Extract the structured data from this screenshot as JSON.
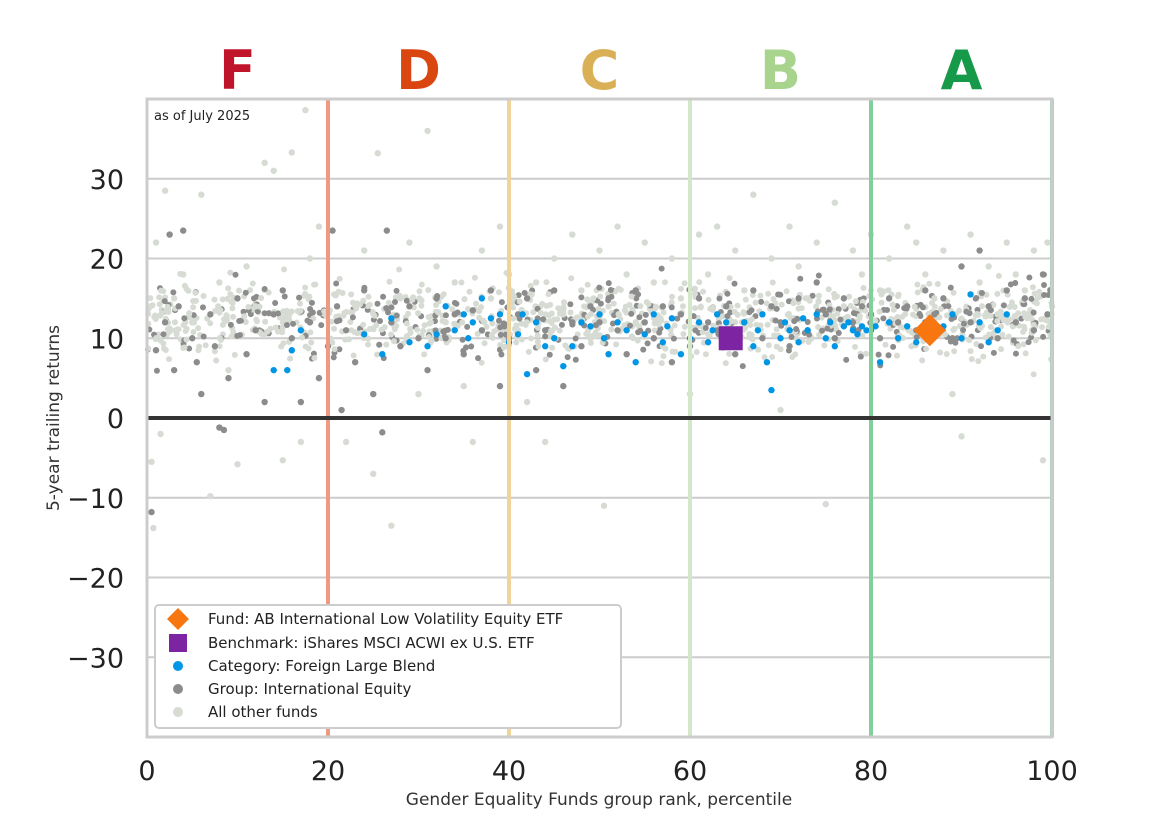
{
  "chart_data": {
    "type": "scatter",
    "title": "",
    "note": "as of July 2025",
    "xlabel": "Gender Equality Funds group rank, percentile",
    "ylabel": "5-year trailing returns",
    "xlim": [
      0,
      100
    ],
    "ylim": [
      -40,
      40
    ],
    "x_ticks": [
      0,
      20,
      40,
      60,
      80,
      100
    ],
    "x_tick_labels": [
      "0",
      "20",
      "40",
      "60",
      "80",
      "100"
    ],
    "y_ticks": [
      30,
      20,
      10,
      0,
      -10,
      -20,
      -30
    ],
    "y_tick_labels": [
      "30",
      "20",
      "10",
      "0",
      "−10",
      "−20",
      "−30"
    ],
    "grid": "horizontal",
    "zero_line": 0,
    "grade_bands": [
      {
        "label": "F",
        "center": 10,
        "boundary": 20,
        "color": "#c0142b",
        "line_color": "#ee9a82"
      },
      {
        "label": "D",
        "center": 30,
        "boundary": 40,
        "color": "#d9460f",
        "line_color": "#f0d49c"
      },
      {
        "label": "C",
        "center": 50,
        "boundary": 60,
        "color": "#d9b055",
        "line_color": "#d3e8c8"
      },
      {
        "label": "B",
        "center": 70,
        "boundary": 80,
        "color": "#a8d48e",
        "line_color": "#82cf9c"
      },
      {
        "label": "A",
        "center": 90,
        "boundary": 100,
        "color": "#17994a",
        "line_color": "#9fd5b3"
      }
    ],
    "legend_position": "lower-left",
    "series": [
      {
        "name": "Fund: AB International Low Volatility Equity ETF",
        "marker": "diamond",
        "color": "#f7760f",
        "points": [
          [
            86.5,
            11.0
          ]
        ]
      },
      {
        "name": "Benchmark: iShares MSCI ACWI ex U.S. ETF",
        "marker": "square",
        "color": "#7d24a3",
        "points": [
          [
            64.5,
            10.0
          ]
        ]
      },
      {
        "name": "Category: Foreign Large Blend",
        "marker": "circle",
        "color": "#0096e6",
        "points": [
          [
            14,
            6
          ],
          [
            15.5,
            6
          ],
          [
            16,
            8.5
          ],
          [
            17,
            11
          ],
          [
            24,
            10.5
          ],
          [
            26,
            8
          ],
          [
            27,
            12.5
          ],
          [
            29,
            9.5
          ],
          [
            31,
            9
          ],
          [
            32,
            10.5
          ],
          [
            33,
            14
          ],
          [
            34,
            11
          ],
          [
            35,
            13
          ],
          [
            35.5,
            10
          ],
          [
            36,
            12
          ],
          [
            37,
            15
          ],
          [
            38,
            12.5
          ],
          [
            39,
            13
          ],
          [
            40,
            9.5
          ],
          [
            41,
            10.5
          ],
          [
            41.5,
            13
          ],
          [
            42,
            5.5
          ],
          [
            43,
            12
          ],
          [
            44,
            9
          ],
          [
            45,
            10
          ],
          [
            46,
            6.5
          ],
          [
            47,
            9
          ],
          [
            48,
            12
          ],
          [
            49,
            11.5
          ],
          [
            50,
            13
          ],
          [
            50.5,
            10
          ],
          [
            51,
            8
          ],
          [
            52,
            12
          ],
          [
            53,
            11
          ],
          [
            54,
            7
          ],
          [
            55,
            10.5
          ],
          [
            56,
            13
          ],
          [
            57,
            9.5
          ],
          [
            57.5,
            11.5
          ],
          [
            58,
            12.5
          ],
          [
            59,
            8
          ],
          [
            60,
            10
          ],
          [
            61,
            12
          ],
          [
            62,
            9.5
          ],
          [
            62.5,
            11
          ],
          [
            63,
            13
          ],
          [
            64,
            12
          ],
          [
            65,
            10.5
          ],
          [
            66,
            12
          ],
          [
            67,
            9
          ],
          [
            67.5,
            11
          ],
          [
            68,
            13
          ],
          [
            68.5,
            7
          ],
          [
            69,
            3.5
          ],
          [
            70,
            10
          ],
          [
            70.5,
            12
          ],
          [
            71,
            11
          ],
          [
            72,
            9.5
          ],
          [
            72.5,
            12.5
          ],
          [
            73,
            11
          ],
          [
            74,
            13
          ],
          [
            75,
            10
          ],
          [
            75.5,
            12
          ],
          [
            76,
            9
          ],
          [
            77,
            11.5
          ],
          [
            77.5,
            12
          ],
          [
            78,
            11
          ],
          [
            78.5,
            10.5
          ],
          [
            79,
            11.5
          ],
          [
            79.5,
            11
          ],
          [
            80,
            11
          ],
          [
            80.5,
            11.5
          ],
          [
            81,
            7
          ],
          [
            82,
            12
          ],
          [
            83,
            10
          ],
          [
            84,
            11.5
          ],
          [
            85,
            9.5
          ],
          [
            86,
            12
          ],
          [
            87,
            10.5
          ],
          [
            88,
            11.5
          ],
          [
            89,
            13
          ],
          [
            90,
            10
          ],
          [
            91,
            15.5
          ],
          [
            92,
            12
          ],
          [
            93,
            9.5
          ],
          [
            94,
            11
          ],
          [
            95,
            13
          ]
        ]
      },
      {
        "name": "Group: International Equity",
        "marker": "circle",
        "color": "#8c8c8c",
        "points": [
          [
            0.5,
            -11.8
          ],
          [
            1,
            8.5
          ],
          [
            2,
            12
          ],
          [
            2.5,
            23
          ],
          [
            3,
            6
          ],
          [
            3.5,
            14
          ],
          [
            4,
            23.5
          ],
          [
            5,
            10
          ],
          [
            5.5,
            7
          ],
          [
            6,
            3
          ],
          [
            7,
            13
          ],
          [
            7.5,
            9
          ],
          [
            8,
            -1.2
          ],
          [
            8.5,
            -1.5
          ],
          [
            9,
            5
          ],
          [
            10,
            15
          ],
          [
            11,
            8
          ],
          [
            12,
            11
          ],
          [
            13,
            2
          ],
          [
            14,
            13
          ],
          [
            15,
            16
          ],
          [
            16,
            10
          ],
          [
            17,
            2
          ],
          [
            18,
            12
          ],
          [
            19,
            5
          ],
          [
            20,
            9
          ],
          [
            20.5,
            23.5
          ],
          [
            21,
            14
          ],
          [
            21.5,
            1
          ],
          [
            22,
            11
          ],
          [
            23,
            7
          ],
          [
            24,
            16
          ],
          [
            25,
            3
          ],
          [
            26,
            -1.8
          ],
          [
            26.5,
            23.5
          ],
          [
            27,
            12
          ],
          [
            28,
            9
          ],
          [
            29,
            14
          ],
          [
            30,
            10
          ],
          [
            31,
            6
          ],
          [
            32,
            15
          ],
          [
            33,
            10
          ],
          [
            34,
            13
          ],
          [
            35,
            8
          ],
          [
            36,
            13.5
          ],
          [
            37,
            11
          ],
          [
            38,
            16
          ],
          [
            39,
            4
          ],
          [
            40,
            10
          ],
          [
            41,
            13
          ],
          [
            42,
            15
          ],
          [
            43,
            6
          ],
          [
            44,
            11
          ],
          [
            45,
            16
          ],
          [
            46,
            4
          ],
          [
            47,
            12
          ],
          [
            48,
            9
          ],
          [
            49,
            14
          ],
          [
            50,
            12
          ],
          [
            51,
            15
          ],
          [
            52,
            11
          ],
          [
            53,
            8
          ],
          [
            54,
            16
          ],
          [
            55,
            12
          ],
          [
            56,
            10
          ],
          [
            57,
            14
          ],
          [
            58,
            7
          ],
          [
            59,
            13
          ],
          [
            60,
            9
          ],
          [
            61,
            15
          ],
          [
            62,
            12
          ],
          [
            63,
            11
          ],
          [
            64,
            14
          ],
          [
            65,
            8
          ],
          [
            66,
            12
          ],
          [
            67,
            16
          ],
          [
            68,
            10
          ],
          [
            69,
            14
          ],
          [
            70,
            12
          ],
          [
            71,
            9
          ],
          [
            72,
            15
          ],
          [
            73,
            11
          ],
          [
            74,
            17
          ],
          [
            75,
            13
          ],
          [
            76,
            10
          ],
          [
            77,
            15
          ],
          [
            78,
            12
          ],
          [
            79,
            14
          ],
          [
            80,
            13
          ],
          [
            81,
            10
          ],
          [
            82,
            15
          ],
          [
            83,
            12
          ],
          [
            84,
            14
          ],
          [
            85,
            11
          ],
          [
            86,
            16
          ],
          [
            87,
            13
          ],
          [
            88,
            15
          ],
          [
            89,
            10
          ],
          [
            90,
            19
          ],
          [
            91,
            12
          ],
          [
            92,
            21
          ],
          [
            93,
            14
          ],
          [
            94,
            10
          ],
          [
            95,
            16
          ],
          [
            96,
            12
          ],
          [
            97,
            15
          ],
          [
            98,
            11
          ],
          [
            99,
            18
          ],
          [
            99.5,
            13
          ]
        ]
      },
      {
        "name": "All other funds",
        "marker": "circle",
        "color": "#d6dbd3",
        "points": [
          [
            0.5,
            -5.5
          ],
          [
            0.7,
            -13.8
          ],
          [
            1,
            22
          ],
          [
            1.5,
            -2
          ],
          [
            2,
            28.5
          ],
          [
            3,
            15
          ],
          [
            4,
            18
          ],
          [
            5,
            12
          ],
          [
            6,
            28
          ],
          [
            7,
            -9.8
          ],
          [
            8,
            17
          ],
          [
            9,
            6
          ],
          [
            10,
            -5.8
          ],
          [
            11,
            19
          ],
          [
            12,
            14
          ],
          [
            13,
            32
          ],
          [
            14,
            31
          ],
          [
            15,
            -5.3
          ],
          [
            16,
            33.3
          ],
          [
            17,
            -3
          ],
          [
            17.5,
            38.6
          ],
          [
            18,
            20
          ],
          [
            19,
            24
          ],
          [
            22,
            -3
          ],
          [
            24,
            21
          ],
          [
            25,
            -7
          ],
          [
            25.5,
            33.2
          ],
          [
            27,
            -13.5
          ],
          [
            28,
            15
          ],
          [
            29,
            22
          ],
          [
            30,
            3
          ],
          [
            31,
            36
          ],
          [
            32,
            19
          ],
          [
            33,
            12
          ],
          [
            34,
            17
          ],
          [
            35,
            4
          ],
          [
            36,
            -3
          ],
          [
            37,
            21
          ],
          [
            38,
            15
          ],
          [
            39,
            24
          ],
          [
            40,
            18
          ],
          [
            41,
            11
          ],
          [
            42,
            2
          ],
          [
            43,
            17
          ],
          [
            44,
            -3
          ],
          [
            45,
            20
          ],
          [
            46,
            13
          ],
          [
            47,
            23
          ],
          [
            48,
            16
          ],
          [
            49,
            10
          ],
          [
            50,
            21
          ],
          [
            50.5,
            -11
          ],
          [
            51,
            14
          ],
          [
            52,
            24
          ],
          [
            53,
            18
          ],
          [
            54,
            12
          ],
          [
            55,
            22
          ],
          [
            56,
            17
          ],
          [
            57,
            9
          ],
          [
            58,
            20
          ],
          [
            59,
            15
          ],
          [
            60,
            3
          ],
          [
            61,
            23
          ],
          [
            62,
            18
          ],
          [
            63,
            24
          ],
          [
            64,
            11
          ],
          [
            65,
            21
          ],
          [
            66,
            16
          ],
          [
            67,
            28
          ],
          [
            68,
            13
          ],
          [
            69,
            20
          ],
          [
            70,
            1
          ],
          [
            71,
            24
          ],
          [
            72,
            19
          ],
          [
            73,
            15
          ],
          [
            74,
            22
          ],
          [
            75,
            -10.8
          ],
          [
            76,
            27
          ],
          [
            77,
            14
          ],
          [
            78,
            21
          ],
          [
            79,
            18
          ],
          [
            80,
            23
          ],
          [
            81,
            16
          ],
          [
            82,
            20
          ],
          [
            83,
            12
          ],
          [
            84,
            24
          ],
          [
            85,
            22
          ],
          [
            86,
            18
          ],
          [
            87,
            15
          ],
          [
            88,
            21
          ],
          [
            89,
            3
          ],
          [
            90,
            -2.3
          ],
          [
            91,
            23
          ],
          [
            92,
            17
          ],
          [
            93,
            19
          ],
          [
            94,
            13
          ],
          [
            95,
            22
          ],
          [
            96,
            18
          ],
          [
            97,
            16
          ],
          [
            98,
            21
          ],
          [
            99,
            -5.3
          ],
          [
            99.5,
            22
          ],
          [
            100,
            14
          ]
        ]
      }
    ]
  }
}
